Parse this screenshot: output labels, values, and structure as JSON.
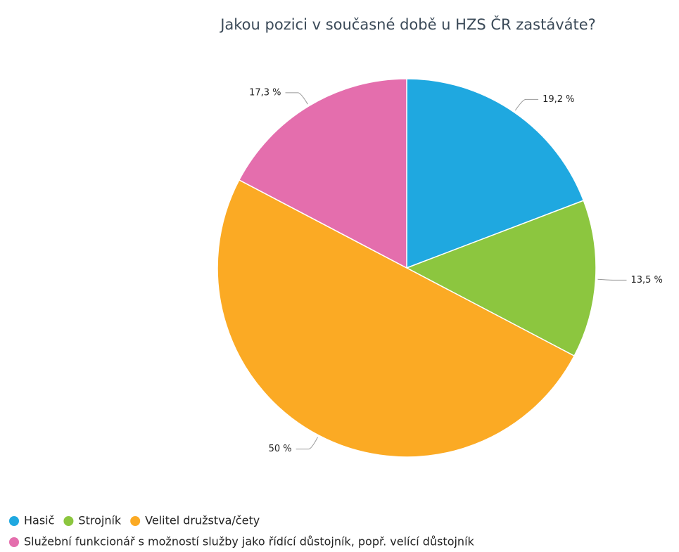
{
  "chart_data": {
    "type": "pie",
    "title": "Jakou pozici v současné době u HZS ČR zastáváte?",
    "categories": [
      "Hasič",
      "Strojník",
      "Velitel družstva/čety",
      "Služební funkcionář s možností služby jako řídící důstojník, popř. velící důstojník"
    ],
    "values": [
      19.2,
      13.5,
      50,
      17.3
    ],
    "value_labels": [
      "19,2 %",
      "13,5 %",
      "50 %",
      "17,3 %"
    ],
    "colors": [
      "#1fa8e0",
      "#8cc63f",
      "#fbaa24",
      "#e46ead"
    ]
  }
}
